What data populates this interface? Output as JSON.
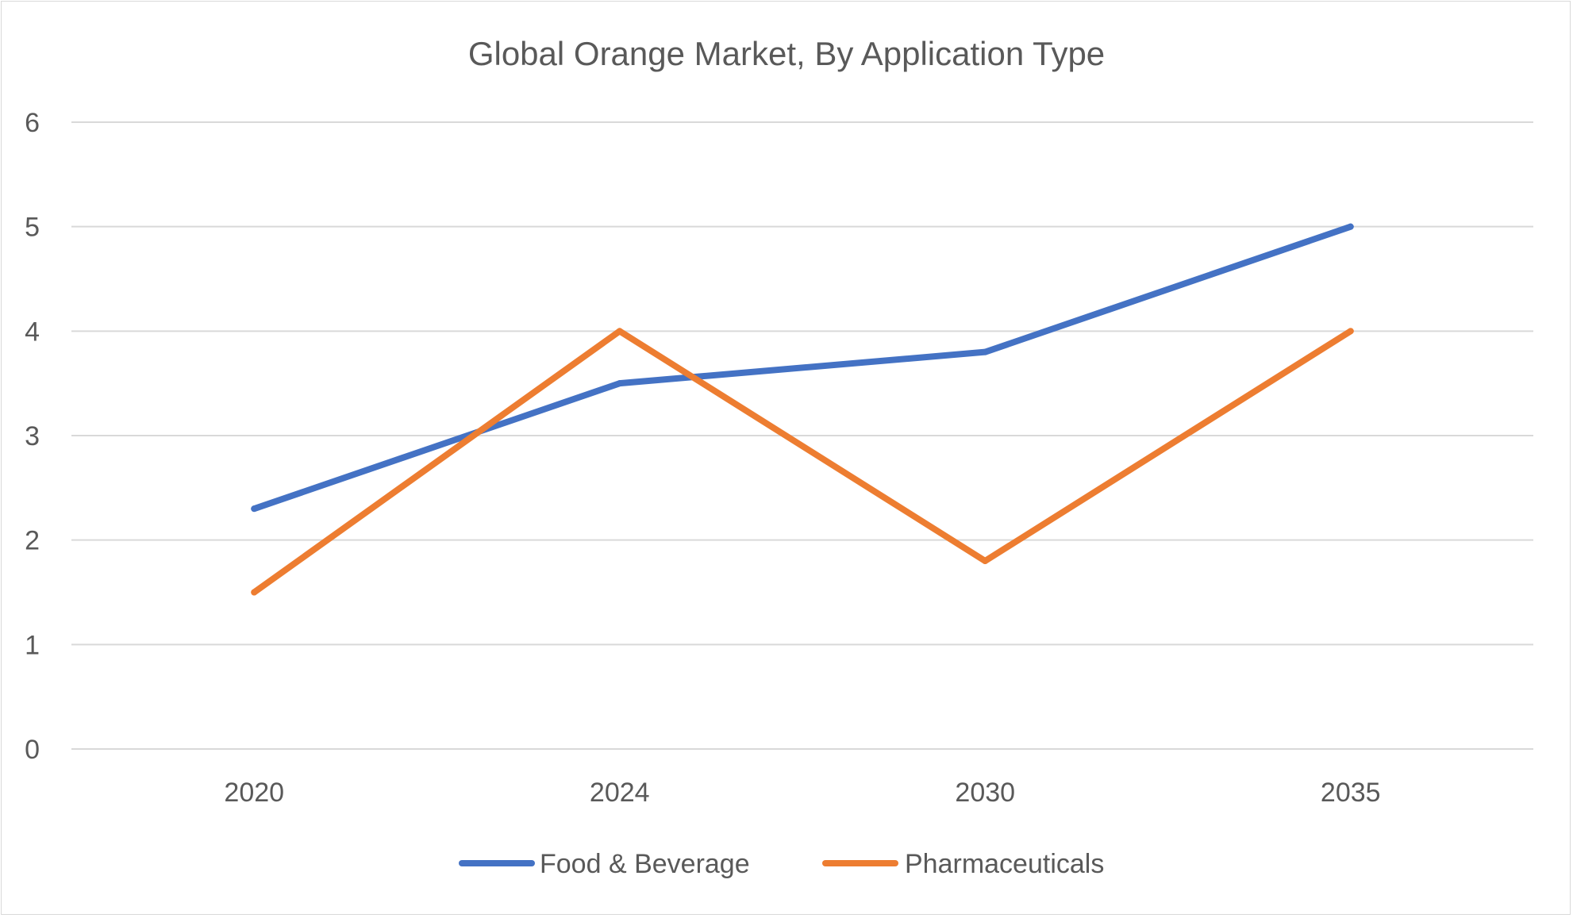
{
  "chart_data": {
    "type": "line",
    "title": "Global Orange Market, By Application Type",
    "xlabel": "",
    "ylabel": "",
    "categories": [
      "2020",
      "2024",
      "2030",
      "2035"
    ],
    "ylim": [
      0,
      6
    ],
    "yticks": [
      0,
      1,
      2,
      3,
      4,
      5,
      6
    ],
    "grid": true,
    "legend_position": "bottom",
    "series": [
      {
        "name": "Food & Beverage",
        "color": "#4472C4",
        "values": [
          2.3,
          3.5,
          3.8,
          5.0
        ]
      },
      {
        "name": "Pharmaceuticals",
        "color": "#ED7D31",
        "values": [
          1.5,
          4.0,
          1.8,
          4.0
        ]
      }
    ]
  }
}
